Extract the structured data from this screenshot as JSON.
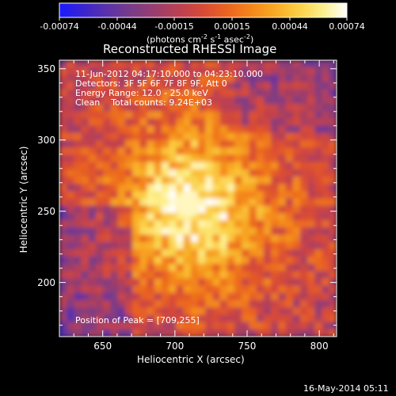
{
  "colorbar": {
    "stops": [
      "#1a1aff",
      "#3a24d0",
      "#5a32a8",
      "#7a3c88",
      "#9a3e6e",
      "#bc4052",
      "#d84a36",
      "#ea6420",
      "#f4861a",
      "#f8aa24",
      "#fbd046",
      "#fdf08c",
      "#ffffff"
    ],
    "tick_labels": [
      "-0.00074",
      "-0.00044",
      "-0.00015",
      "0.00015",
      "0.00044",
      "0.00074"
    ],
    "units_text": "(photons cm",
    "units_exp1": "-2",
    "units_mid": " s",
    "units_exp2": "-1",
    "units_end": " asec",
    "units_exp3": "-2",
    "units_close": ")"
  },
  "image": {
    "title": "Reconstructed RHESSI Image",
    "info_lines": [
      "11-Jun-2012 04:17:10.000 to 04:23:10.000",
      "Detectors: 3F 5F 6F 7F 8F 9F, Att 0",
      "Energy Range: 12.0 - 25.0 keV",
      "Clean    Total counts: 9.24E+03"
    ],
    "peak_text": "Position of Peak = [709,255]",
    "x_axis": {
      "label": "Heliocentric X (arcsec)",
      "range": [
        620,
        812
      ],
      "ticks": [
        "650",
        "700",
        "750",
        "800"
      ]
    },
    "y_axis": {
      "label": "Heliocentric Y (arcsec)",
      "range": [
        162,
        356
      ],
      "ticks": [
        "200",
        "250",
        "300",
        "350"
      ]
    },
    "peak": [
      709,
      255
    ]
  },
  "footer": {
    "date": "16-May-2014 05:11"
  }
}
